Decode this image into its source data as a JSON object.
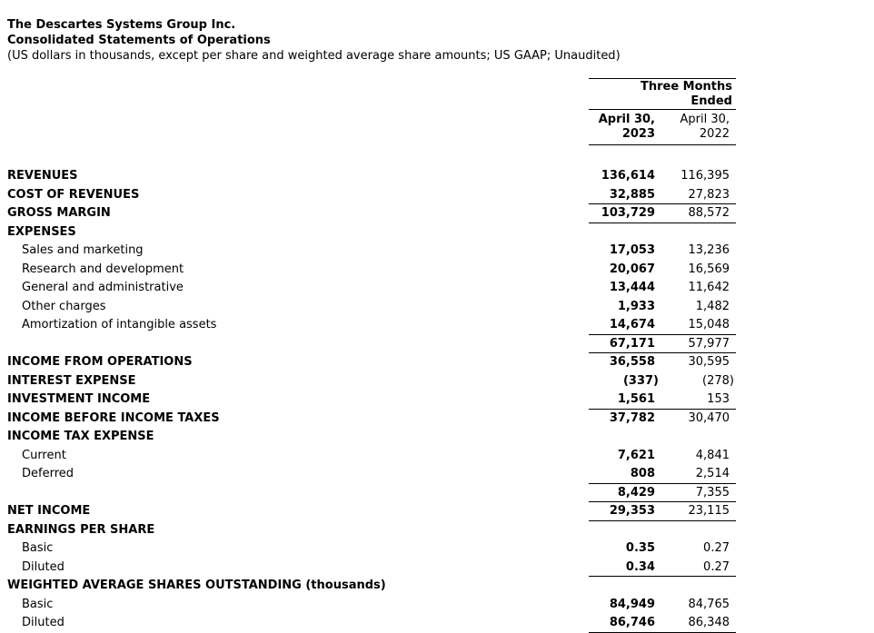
{
  "header": {
    "company": "The Descartes Systems Group Inc.",
    "statement_title": "Consolidated Statements of Operations",
    "subtitle": "(US dollars in thousands, except per share and weighted average share amounts; US GAAP; Unaudited)"
  },
  "table": {
    "period_header": {
      "line1": "Three Months",
      "line2": "Ended"
    },
    "col_2023": {
      "date": "April 30,",
      "year": "2023"
    },
    "col_2022": {
      "date": "April 30,",
      "year": "2022"
    },
    "rows": [
      {
        "label": "REVENUES",
        "bold": true,
        "indent": false,
        "v2023": "136,614",
        "v2022": "116,395",
        "rule": false
      },
      {
        "label": "COST OF REVENUES",
        "bold": true,
        "indent": false,
        "v2023": "32,885",
        "v2022": "27,823",
        "rule": true
      },
      {
        "label": "GROSS MARGIN",
        "bold": true,
        "indent": false,
        "v2023": "103,729",
        "v2022": "88,572",
        "rule": true
      },
      {
        "label": "EXPENSES",
        "bold": true,
        "indent": false,
        "v2023": "",
        "v2022": "",
        "rule": false
      },
      {
        "label": "Sales and marketing",
        "bold": false,
        "indent": true,
        "v2023": "17,053",
        "v2022": "13,236",
        "rule": false
      },
      {
        "label": "Research and development",
        "bold": false,
        "indent": true,
        "v2023": "20,067",
        "v2022": "16,569",
        "rule": false
      },
      {
        "label": "General and administrative",
        "bold": false,
        "indent": true,
        "v2023": "13,444",
        "v2022": "11,642",
        "rule": false
      },
      {
        "label": "Other charges",
        "bold": false,
        "indent": true,
        "v2023": "1,933",
        "v2022": "1,482",
        "rule": false
      },
      {
        "label": "Amortization of intangible assets",
        "bold": false,
        "indent": true,
        "v2023": "14,674",
        "v2022": "15,048",
        "rule": true
      },
      {
        "label": "",
        "bold": false,
        "indent": false,
        "v2023": "67,171",
        "v2022": "57,977",
        "rule": true
      },
      {
        "label": "INCOME FROM OPERATIONS",
        "bold": true,
        "indent": false,
        "v2023": "36,558",
        "v2022": "30,595",
        "rule": false
      },
      {
        "label": "INTEREST EXPENSE",
        "bold": true,
        "indent": false,
        "v2023": "(337)",
        "v2022": "(278)",
        "rule": false
      },
      {
        "label": "INVESTMENT INCOME",
        "bold": true,
        "indent": false,
        "v2023": "1,561",
        "v2022": "153",
        "rule": true
      },
      {
        "label": "INCOME BEFORE INCOME TAXES",
        "bold": true,
        "indent": false,
        "v2023": "37,782",
        "v2022": "30,470",
        "rule": false
      },
      {
        "label": "INCOME TAX EXPENSE",
        "bold": true,
        "indent": false,
        "v2023": "",
        "v2022": "",
        "rule": false
      },
      {
        "label": "Current",
        "bold": false,
        "indent": true,
        "v2023": "7,621",
        "v2022": "4,841",
        "rule": false
      },
      {
        "label": "Deferred",
        "bold": false,
        "indent": true,
        "v2023": "808",
        "v2022": "2,514",
        "rule": true
      },
      {
        "label": "",
        "bold": false,
        "indent": false,
        "v2023": "8,429",
        "v2022": "7,355",
        "rule": true
      },
      {
        "label": "NET INCOME",
        "bold": true,
        "indent": false,
        "v2023": "29,353",
        "v2022": "23,115",
        "rule": true
      },
      {
        "label": "EARNINGS PER SHARE",
        "bold": true,
        "indent": false,
        "v2023": "",
        "v2022": "",
        "rule": false
      },
      {
        "label": "Basic",
        "bold": false,
        "indent": true,
        "v2023": "0.35",
        "v2022": "0.27",
        "rule": false
      },
      {
        "label": "Diluted",
        "bold": false,
        "indent": true,
        "v2023": "0.34",
        "v2022": "0.27",
        "rule": true
      },
      {
        "label": "WEIGHTED AVERAGE SHARES OUTSTANDING (thousands)",
        "bold": true,
        "indent": false,
        "v2023": "",
        "v2022": "",
        "rule": false
      },
      {
        "label": "Basic",
        "bold": false,
        "indent": true,
        "v2023": "84,949",
        "v2022": "84,765",
        "rule": false
      },
      {
        "label": "Diluted",
        "bold": false,
        "indent": true,
        "v2023": "86,746",
        "v2022": "86,348",
        "rule": true
      }
    ]
  }
}
